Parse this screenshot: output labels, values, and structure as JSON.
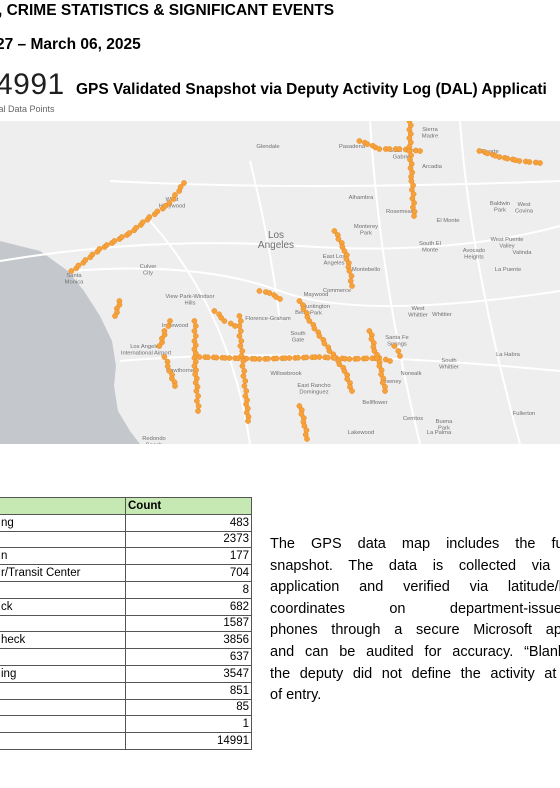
{
  "header": {
    "title_line": ", CRIME STATISTICS & SIGNIFICANT EVENTS",
    "date_line": "27 – March 06, 2025"
  },
  "kpi": {
    "total": "4991",
    "total_label": "tal Data Points",
    "snapshot_title": "GPS Validated Snapshot via Deputy Activity Log (DAL) Applicati"
  },
  "map": {
    "dot_color": "#f6a23a",
    "land_color": "#eeeeee",
    "ocean_color": "#c4c8cc",
    "labels": [
      "Glendale",
      "Pasadena",
      "Sierra Madre",
      "Arcadia",
      "Duarte",
      "East San Gabriel",
      "Alhambra",
      "Rosemead",
      "El Monte",
      "Baldwin Park",
      "West Covina",
      "West Hollywood",
      "Los Angeles",
      "Monterey Park",
      "South El Monte",
      "West Puente Valley",
      "Avocado Heights",
      "Valinda",
      "La Puente",
      "Culver City",
      "Santa Monica",
      "East Los Angeles",
      "Montebello",
      "Commerce",
      "View Park-Windsor Hills",
      "Maywood",
      "Huntington Park",
      "Inglewood",
      "Florence-Graham",
      "Bell",
      "West Whittier",
      "Whittier",
      "South Gate",
      "Santa Fe Springs",
      "Los Angeles International Airport",
      "La Habra",
      "South Whittier",
      "Hawthorne",
      "Willowbrook",
      "Norwalk",
      "East Rancho Dominguez",
      "Downey",
      "Bellflower",
      "Fullerton",
      "Cerritos",
      "Buena Park",
      "Redondo Beach",
      "Lakewood",
      "La Palma"
    ]
  },
  "table": {
    "headers": [
      "",
      "Count"
    ],
    "rows": [
      [
        "ng",
        "483"
      ],
      [
        "",
        "2373"
      ],
      [
        "n",
        "177"
      ],
      [
        "r/Transit Center",
        "704"
      ],
      [
        "",
        "8"
      ],
      [
        "ck",
        "682"
      ],
      [
        "",
        "1587"
      ],
      [
        "heck",
        "3856"
      ],
      [
        "",
        "637"
      ],
      [
        "ing",
        "3547"
      ],
      [
        "",
        "851"
      ],
      [
        "",
        "85"
      ],
      [
        "",
        "1"
      ],
      [
        "",
        "14991"
      ]
    ]
  },
  "paragraph": {
    "lines": [
      "The GPS data map includes the full",
      "snapshot. The data is collected via t",
      "application and verified via latitude/lo",
      "coordinates on department-issued",
      "phones through a secure Microsoft app",
      "and can be audited for accuracy. “Blank”",
      "the deputy did not define the activity at t",
      "of entry."
    ]
  }
}
